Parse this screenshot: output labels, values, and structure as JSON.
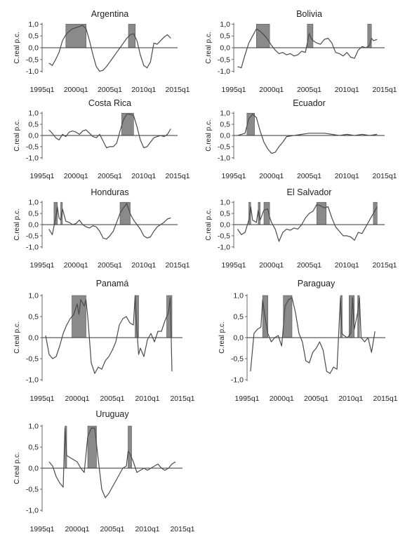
{
  "chart_data": [
    {
      "type": "line",
      "title": "Argentina",
      "ylabel": "C.real p.c.",
      "xlabel": "",
      "x_ticks": [
        "1995q1",
        "2000q1",
        "2005q1",
        "2010q1",
        "2015q1"
      ],
      "y_ticks": [
        "1,0",
        "0,5",
        "0,0",
        "-0,5",
        "-1,0"
      ],
      "xlim": [
        1995.0,
        2015.0
      ],
      "ylim": [
        -1.1,
        1.1
      ],
      "shaded_intervals": [
        [
          1998.5,
          2001.5
        ],
        [
          2007.75,
          2008.75
        ]
      ],
      "series": [
        {
          "x": [
            1996.0,
            1996.5,
            1997.0,
            1997.5,
            1998.0,
            1998.5,
            1999.0,
            1999.5,
            2000.0,
            2000.5,
            2001.0,
            2001.5,
            2002.0,
            2002.5,
            2003.0,
            2003.5,
            2004.0,
            2004.5,
            2005.0,
            2005.5,
            2006.0,
            2006.5,
            2007.0,
            2007.5,
            2008.0,
            2008.5,
            2009.0,
            2009.5,
            2010.0,
            2010.5,
            2011.0,
            2011.5,
            2012.0,
            2012.5,
            2013.0,
            2013.5,
            2014.0
          ],
          "y": [
            -0.65,
            -0.75,
            -0.5,
            -0.2,
            0.3,
            0.55,
            0.7,
            0.8,
            0.85,
            0.9,
            0.95,
            0.8,
            0.3,
            -0.3,
            -0.8,
            -1.0,
            -0.95,
            -0.8,
            -0.6,
            -0.4,
            -0.2,
            0.0,
            0.2,
            0.4,
            0.55,
            0.6,
            0.3,
            -0.3,
            -0.75,
            -0.85,
            -0.6,
            0.2,
            0.15,
            0.3,
            0.45,
            0.55,
            0.4
          ]
        }
      ]
    },
    {
      "type": "line",
      "title": "Bolivia",
      "ylabel": "C.real p.c.",
      "xlabel": "",
      "x_ticks": [
        "1995q1",
        "2000q1",
        "2005q1",
        "2010q1",
        "2015q1"
      ],
      "y_ticks": [
        "1,0",
        "0,5",
        "0,0",
        "-0,5",
        "-1,0"
      ],
      "xlim": [
        1995.0,
        2015.0
      ],
      "ylim": [
        -1.1,
        1.1
      ],
      "shaded_intervals": [
        [
          1998.0,
          1999.75
        ],
        [
          2004.75,
          2005.5
        ],
        [
          2012.75,
          2013.25
        ]
      ],
      "series": [
        {
          "x": [
            1995.5,
            1996.0,
            1996.5,
            1997.0,
            1997.5,
            1998.0,
            1998.5,
            1999.0,
            1999.5,
            2000.0,
            2000.5,
            2001.0,
            2001.5,
            2002.0,
            2002.5,
            2003.0,
            2003.5,
            2004.0,
            2004.5,
            2005.0,
            2005.25,
            2005.5,
            2006.0,
            2006.5,
            2007.0,
            2007.5,
            2008.0,
            2008.5,
            2009.0,
            2009.5,
            2010.0,
            2010.5,
            2011.0,
            2011.5,
            2012.0,
            2012.5,
            2013.0,
            2013.25,
            2013.5,
            2014.0
          ],
          "y": [
            -0.8,
            -0.85,
            -0.3,
            0.2,
            0.5,
            0.8,
            0.7,
            0.55,
            0.35,
            0.1,
            -0.1,
            -0.25,
            -0.2,
            -0.3,
            -0.25,
            -0.35,
            -0.3,
            -0.15,
            -0.2,
            0.6,
            0.4,
            0.3,
            0.2,
            0.15,
            0.35,
            0.4,
            0.2,
            -0.2,
            -0.25,
            -0.35,
            -0.2,
            -0.4,
            -0.45,
            -0.1,
            0.05,
            0.0,
            0.1,
            0.4,
            0.3,
            0.35
          ]
        }
      ]
    },
    {
      "type": "line",
      "title": "Costa Rica",
      "ylabel": "C.real p.c.",
      "xlabel": "",
      "x_ticks": [
        "1995q1",
        "2000q1",
        "2005q1",
        "2010q1",
        "2015q1"
      ],
      "y_ticks": [
        "1,0",
        "0,5",
        "0,0",
        "-0,5",
        "-1,0"
      ],
      "xlim": [
        1995.0,
        2015.0
      ],
      "ylim": [
        -1.1,
        1.1
      ],
      "shaded_intervals": [
        [
          2006.75,
          2008.5
        ]
      ],
      "series": [
        {
          "x": [
            1996.0,
            1996.5,
            1997.0,
            1997.5,
            1998.0,
            1998.5,
            1999.0,
            1999.5,
            2000.0,
            2000.5,
            2001.0,
            2001.5,
            2002.0,
            2002.5,
            2003.0,
            2003.5,
            2004.0,
            2004.5,
            2005.0,
            2005.5,
            2006.0,
            2006.5,
            2007.0,
            2007.5,
            2008.0,
            2008.5,
            2009.0,
            2009.5,
            2010.0,
            2010.5,
            2011.0,
            2011.5,
            2012.0,
            2012.5,
            2013.0,
            2013.5,
            2014.0
          ],
          "y": [
            0.25,
            0.1,
            -0.1,
            -0.2,
            0.05,
            -0.05,
            0.15,
            0.2,
            0.15,
            0.05,
            0.2,
            0.25,
            0.1,
            -0.05,
            -0.1,
            0.05,
            -0.25,
            -0.55,
            -0.5,
            -0.5,
            -0.35,
            0.2,
            0.7,
            0.95,
            0.95,
            0.9,
            0.4,
            -0.2,
            -0.55,
            -0.5,
            -0.3,
            -0.1,
            -0.05,
            0.0,
            -0.05,
            0.05,
            0.3
          ]
        }
      ]
    },
    {
      "type": "line",
      "title": "Ecuador",
      "ylabel": "C.real p.c.",
      "xlabel": "",
      "x_ticks": [
        "1995q1",
        "2000q1",
        "2005q1",
        "2010q1",
        "2015q1"
      ],
      "y_ticks": [
        "1,0",
        "0,5",
        "0,0",
        "-0,5",
        "-1,0"
      ],
      "xlim": [
        1995.0,
        2015.0
      ],
      "ylim": [
        -1.1,
        1.1
      ],
      "shaded_intervals": [
        [
          1996.75,
          1997.75
        ]
      ],
      "series": [
        {
          "x": [
            1995.5,
            1996.0,
            1996.5,
            1997.0,
            1997.5,
            1998.0,
            1998.5,
            1999.0,
            1999.5,
            2000.0,
            2000.5,
            2001.0,
            2001.5,
            2002.0,
            2003.0,
            2004.0,
            2005.0,
            2006.0,
            2007.0,
            2008.0,
            2009.0,
            2010.0,
            2011.0,
            2012.0,
            2013.0,
            2014.0
          ],
          "y": [
            0.0,
            0.05,
            0.1,
            0.75,
            0.95,
            0.8,
            0.2,
            -0.3,
            -0.6,
            -0.8,
            -0.75,
            -0.5,
            -0.3,
            -0.05,
            0.0,
            0.05,
            0.1,
            0.1,
            0.1,
            0.05,
            0.0,
            0.05,
            0.0,
            0.05,
            0.0,
            0.05
          ]
        }
      ]
    },
    {
      "type": "line",
      "title": "Honduras",
      "ylabel": "C.real p.c.",
      "xlabel": "",
      "x_ticks": [
        "1995q1",
        "2000q1",
        "2005q1",
        "2010q1",
        "2015q1"
      ],
      "y_ticks": [
        "1,0",
        "0,5",
        "0,0",
        "-0,5",
        "-1,0"
      ],
      "xlim": [
        1995.0,
        2015.0
      ],
      "ylim": [
        -1.1,
        1.1
      ],
      "shaded_intervals": [
        [
          1996.75,
          1997.25
        ],
        [
          1997.75,
          1998.0
        ],
        [
          2006.5,
          2008.0
        ]
      ],
      "series": [
        {
          "x": [
            1996.0,
            1996.5,
            1997.0,
            1997.25,
            1997.5,
            1997.75,
            1998.0,
            1998.5,
            1999.0,
            1999.5,
            2000.0,
            2000.5,
            2001.0,
            2001.5,
            2002.0,
            2002.5,
            2003.0,
            2003.5,
            2004.0,
            2004.5,
            2005.0,
            2005.5,
            2006.0,
            2006.5,
            2007.0,
            2007.5,
            2008.0,
            2008.5,
            2009.0,
            2009.5,
            2010.0,
            2010.5,
            2011.0,
            2011.5,
            2012.0,
            2012.5,
            2013.0,
            2013.5,
            2014.0
          ],
          "y": [
            -0.2,
            -0.45,
            0.3,
            0.8,
            0.3,
            0.2,
            0.7,
            0.15,
            0.1,
            0.0,
            0.05,
            0.2,
            0.0,
            -0.1,
            -0.15,
            -0.05,
            -0.1,
            -0.3,
            -0.6,
            -0.65,
            -0.5,
            -0.3,
            0.1,
            0.5,
            0.75,
            0.95,
            0.5,
            0.2,
            0.0,
            -0.2,
            -0.5,
            -0.6,
            -0.55,
            -0.3,
            -0.1,
            0.0,
            0.1,
            0.25,
            0.3
          ]
        }
      ]
    },
    {
      "type": "line",
      "title": "El Salvador",
      "ylabel": "C.real p.c.",
      "xlabel": "",
      "x_ticks": [
        "1995q1",
        "2000q1",
        "2005q1",
        "2010q1",
        "2015q1"
      ],
      "y_ticks": [
        "1,0",
        "0,5",
        "0,0",
        "-0,5",
        "-1,0"
      ],
      "xlim": [
        1995.0,
        2015.0
      ],
      "ylim": [
        -1.1,
        1.1
      ],
      "shaded_intervals": [
        [
          1997.0,
          1997.25
        ],
        [
          1998.25,
          1998.5
        ],
        [
          1999.0,
          1999.75
        ],
        [
          2006.0,
          2007.25
        ],
        [
          2013.5,
          2014.0
        ]
      ],
      "series": [
        {
          "x": [
            1995.5,
            1996.0,
            1996.5,
            1997.0,
            1997.25,
            1997.5,
            1998.0,
            1998.25,
            1998.5,
            1999.0,
            1999.5,
            1999.75,
            2000.0,
            2000.5,
            2001.0,
            2001.5,
            2002.0,
            2002.5,
            2003.0,
            2003.5,
            2004.0,
            2004.5,
            2005.0,
            2005.5,
            2006.0,
            2006.5,
            2007.0,
            2007.5,
            2008.0,
            2008.5,
            2009.0,
            2009.5,
            2010.0,
            2010.5,
            2011.0,
            2011.5,
            2012.0,
            2012.5,
            2013.0,
            2013.5,
            2014.0
          ],
          "y": [
            -0.2,
            -0.45,
            -0.35,
            0.2,
            0.8,
            0.2,
            0.1,
            0.65,
            0.2,
            0.65,
            0.7,
            0.35,
            0.1,
            -0.2,
            -0.75,
            -0.35,
            -0.2,
            -0.25,
            -0.15,
            -0.2,
            0.0,
            0.3,
            0.5,
            0.6,
            0.9,
            0.85,
            0.75,
            0.8,
            0.3,
            -0.1,
            -0.3,
            -0.5,
            -0.5,
            -0.55,
            -0.7,
            -0.35,
            -0.4,
            -0.1,
            0.2,
            0.5,
            0.8
          ]
        }
      ]
    },
    {
      "type": "line",
      "title": "Panamá",
      "ylabel": "C.real p.c.",
      "xlabel": "",
      "x_ticks": [
        "1995q1",
        "2000q1",
        "2005q1",
        "2010q1",
        "2015q1"
      ],
      "y_ticks": [
        "1,0",
        "0,5",
        "0,0",
        "-0,5",
        "-1,0"
      ],
      "xlim": [
        1995.0,
        2015.0
      ],
      "ylim": [
        -1.1,
        1.1
      ],
      "shaded_intervals": [
        [
          1999.25,
          2001.25
        ],
        [
          2008.25,
          2008.75
        ],
        [
          2012.75,
          2013.5
        ]
      ],
      "series": [
        {
          "x": [
            1995.5,
            1996.0,
            1996.5,
            1997.0,
            1997.5,
            1998.0,
            1998.5,
            1999.0,
            1999.5,
            2000.0,
            2000.25,
            2000.5,
            2001.0,
            2001.25,
            2001.5,
            2002.0,
            2002.5,
            2003.0,
            2003.5,
            2004.0,
            2004.5,
            2005.0,
            2005.5,
            2006.0,
            2006.5,
            2007.0,
            2007.5,
            2008.0,
            2008.25,
            2008.5,
            2008.75,
            2009.0,
            2009.5,
            2010.0,
            2010.5,
            2011.0,
            2011.5,
            2012.0,
            2012.5,
            2013.0,
            2013.25,
            2013.5
          ],
          "y": [
            0.05,
            -0.4,
            -0.5,
            -0.45,
            -0.2,
            0.1,
            0.3,
            0.45,
            0.55,
            0.8,
            0.55,
            0.9,
            0.75,
            0.9,
            0.5,
            -0.6,
            -0.85,
            -0.7,
            -0.75,
            -0.55,
            -0.45,
            -0.3,
            -0.1,
            0.3,
            0.45,
            0.5,
            0.35,
            0.3,
            1.0,
            0.2,
            -0.4,
            -0.25,
            -0.45,
            -0.05,
            0.1,
            -0.1,
            0.15,
            0.15,
            0.4,
            0.6,
            0.95,
            -0.8
          ]
        }
      ]
    },
    {
      "type": "line",
      "title": "Paraguay",
      "ylabel": "C.real p.c.",
      "xlabel": "",
      "x_ticks": [
        "1995q1",
        "2000q1",
        "2005q1",
        "2010q1",
        "2015q1"
      ],
      "y_ticks": [
        "1,0",
        "0,5",
        "0,0",
        "-0,5",
        "-1,0"
      ],
      "xlim": [
        1995.0,
        2015.0
      ],
      "ylim": [
        -1.1,
        1.1
      ],
      "shaded_intervals": [
        [
          1997.25,
          1998.0
        ],
        [
          2000.25,
          2001.5
        ],
        [
          2008.5,
          2008.75
        ],
        [
          2009.75,
          2010.5
        ],
        [
          2011.0,
          2011.25
        ]
      ],
      "series": [
        {
          "x": [
            1995.5,
            1996.0,
            1996.5,
            1997.0,
            1997.25,
            1997.5,
            1998.0,
            1998.5,
            1999.0,
            1999.5,
            2000.0,
            2000.5,
            2001.0,
            2001.5,
            2002.0,
            2002.5,
            2003.0,
            2003.5,
            2004.0,
            2004.5,
            2005.0,
            2005.5,
            2006.0,
            2006.5,
            2007.0,
            2007.5,
            2008.0,
            2008.5,
            2008.75,
            2009.0,
            2009.5,
            2010.0,
            2010.25,
            2010.5,
            2011.0,
            2011.25,
            2011.5,
            2012.0,
            2012.5,
            2013.0,
            2013.5
          ],
          "y": [
            -0.8,
            0.1,
            0.2,
            0.25,
            0.9,
            0.6,
            0.1,
            -0.1,
            0.0,
            0.05,
            -0.2,
            0.75,
            0.9,
            0.95,
            0.6,
            0.1,
            -0.1,
            -0.55,
            -0.6,
            -0.35,
            -0.25,
            -0.1,
            -0.3,
            -0.8,
            -0.85,
            -0.7,
            -0.75,
            0.95,
            0.1,
            0.05,
            0.0,
            0.1,
            0.95,
            0.2,
            0.6,
            0.95,
            0.0,
            -0.1,
            0.0,
            -0.35,
            0.15
          ]
        }
      ]
    },
    {
      "type": "line",
      "title": "Uruguay",
      "ylabel": "C.real p.c.",
      "xlabel": "",
      "x_ticks": [
        "1995q1",
        "2000q1",
        "2005q1",
        "2010q1",
        "2015q1"
      ],
      "y_ticks": [
        "1,0",
        "0,5",
        "0,0",
        "-0,5",
        "-1,0"
      ],
      "xlim": [
        1995.0,
        2015.0
      ],
      "ylim": [
        -1.1,
        1.1
      ],
      "shaded_intervals": [
        [
          1998.25,
          1998.5
        ],
        [
          2001.5,
          2002.75
        ],
        [
          2007.25,
          2007.75
        ]
      ],
      "series": [
        {
          "x": [
            1996.0,
            1996.5,
            1997.0,
            1997.5,
            1998.0,
            1998.25,
            1998.5,
            1999.0,
            1999.5,
            2000.0,
            2000.5,
            2001.0,
            2001.5,
            2002.0,
            2002.5,
            2003.0,
            2003.5,
            2004.0,
            2004.5,
            2005.0,
            2005.5,
            2006.0,
            2006.5,
            2007.0,
            2007.25,
            2007.5,
            2008.0,
            2008.5,
            2009.0,
            2009.5,
            2010.0,
            2010.5,
            2011.0,
            2011.5,
            2012.0,
            2012.5,
            2013.0,
            2013.5,
            2014.0
          ],
          "y": [
            0.15,
            0.05,
            -0.2,
            -0.35,
            -0.45,
            0.95,
            0.3,
            0.25,
            0.2,
            0.15,
            0.0,
            -0.1,
            0.75,
            0.95,
            0.95,
            0.2,
            -0.5,
            -0.7,
            -0.6,
            -0.45,
            -0.3,
            -0.15,
            0.0,
            0.05,
            0.4,
            0.35,
            0.15,
            -0.1,
            -0.05,
            0.0,
            -0.05,
            0.0,
            0.05,
            0.1,
            0.0,
            -0.05,
            0.0,
            0.1,
            0.15
          ]
        }
      ]
    }
  ]
}
